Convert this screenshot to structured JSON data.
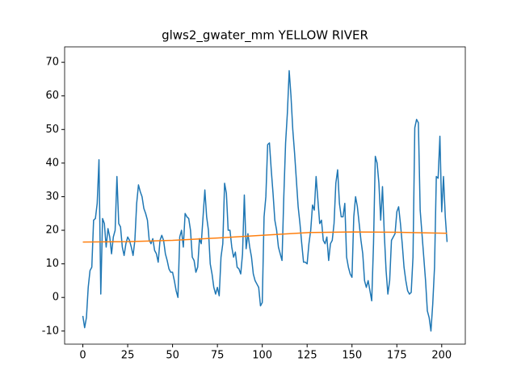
{
  "chart_data": {
    "type": "line",
    "title": "glws2_gwater_mm YELLOW RIVER",
    "xlim": [
      -10.15,
      213.15
    ],
    "ylim": [
      -13.9,
      74.6
    ],
    "xticks": [
      0,
      25,
      50,
      75,
      100,
      125,
      150,
      175,
      200
    ],
    "yticks": [
      -10,
      0,
      10,
      20,
      30,
      40,
      50,
      60,
      70
    ],
    "series": [
      {
        "color": "#1f77b4",
        "x": [
          0,
          1,
          2,
          3,
          4,
          5,
          6,
          7,
          8,
          9,
          10,
          11,
          12,
          13,
          14,
          15,
          16,
          17,
          18,
          19,
          20,
          21,
          22,
          23,
          24,
          25,
          26,
          27,
          28,
          29,
          30,
          31,
          32,
          33,
          34,
          35,
          36,
          37,
          38,
          39,
          40,
          41,
          42,
          43,
          44,
          45,
          46,
          47,
          48,
          49,
          50,
          51,
          52,
          53,
          54,
          55,
          56,
          57,
          58,
          59,
          60,
          61,
          62,
          63,
          64,
          65,
          66,
          67,
          68,
          69,
          70,
          71,
          72,
          73,
          74,
          75,
          76,
          77,
          78,
          79,
          80,
          81,
          82,
          83,
          84,
          85,
          86,
          87,
          88,
          89,
          90,
          91,
          92,
          93,
          94,
          95,
          96,
          97,
          98,
          99,
          100,
          101,
          102,
          103,
          104,
          105,
          106,
          107,
          108,
          109,
          110,
          111,
          112,
          113,
          114,
          115,
          116,
          117,
          118,
          119,
          120,
          121,
          122,
          123,
          124,
          125,
          126,
          127,
          128,
          129,
          130,
          131,
          132,
          133,
          134,
          135,
          136,
          137,
          138,
          139,
          140,
          141,
          142,
          143,
          144,
          145,
          146,
          147,
          148,
          149,
          150,
          151,
          152,
          153,
          154,
          155,
          156,
          157,
          158,
          159,
          160,
          161,
          162,
          163,
          164,
          165,
          166,
          167,
          168,
          169,
          170,
          171,
          172,
          173,
          174,
          175,
          176,
          177,
          178,
          179,
          180,
          181,
          182,
          183,
          184,
          185,
          186,
          187,
          188,
          189,
          190,
          191,
          192,
          193,
          194,
          195,
          196,
          197,
          198,
          199,
          200,
          201,
          202,
          203
        ],
        "values": [
          -5.5,
          -9,
          -6,
          3,
          8,
          9,
          23,
          23.5,
          28,
          41,
          1,
          23.5,
          22,
          15,
          20.5,
          18,
          13,
          18,
          20,
          36,
          22,
          21,
          15,
          12.5,
          16,
          18,
          17,
          15,
          12.5,
          17,
          28,
          33.5,
          31.5,
          30,
          26.5,
          25,
          23,
          17,
          16,
          17.5,
          14,
          13,
          10.5,
          17,
          18.5,
          17,
          13,
          11,
          8.5,
          7.5,
          7.5,
          5,
          2,
          0,
          18,
          20,
          15,
          25,
          24,
          23.5,
          20,
          12,
          11,
          7.5,
          9,
          17.5,
          16,
          24,
          32,
          24,
          20,
          10,
          7,
          3,
          1,
          3,
          0.5,
          12,
          16,
          34,
          31,
          20,
          20,
          15,
          12,
          13.5,
          9,
          8.5,
          7,
          13,
          30.5,
          14.5,
          19,
          15,
          12,
          7,
          5,
          4,
          3,
          -2.5,
          -1.5,
          24,
          30,
          45.5,
          46,
          38,
          31,
          23,
          20,
          15,
          13,
          11,
          30,
          46,
          55,
          67.5,
          60,
          50,
          43,
          35,
          27,
          22,
          16,
          10.5,
          10.5,
          10,
          16,
          20,
          27.5,
          26,
          36,
          29,
          22,
          23,
          17,
          16,
          18,
          11,
          16,
          17,
          22,
          34,
          38,
          28,
          24,
          24,
          28,
          12,
          9,
          7,
          6,
          24,
          30,
          27,
          22,
          17,
          13,
          5,
          3,
          5,
          2,
          -1,
          16,
          42,
          40,
          34,
          23,
          33,
          19,
          8,
          1,
          5,
          17,
          18,
          19,
          25.5,
          27,
          22,
          16,
          9,
          5,
          2,
          1,
          1.5,
          12,
          50.5,
          53,
          52,
          26,
          19,
          12,
          5,
          -4,
          -6,
          -10,
          -2,
          9,
          36,
          35.5,
          48,
          25.5,
          36,
          24,
          16.5
        ]
      },
      {
        "color": "#ff7f0e",
        "x": [
          0,
          25,
          50,
          75,
          100,
          125,
          150,
          175,
          203
        ],
        "values": [
          16.5,
          16.6,
          17.0,
          17.7,
          18.5,
          19.3,
          19.5,
          19.4,
          19.1
        ]
      }
    ]
  }
}
